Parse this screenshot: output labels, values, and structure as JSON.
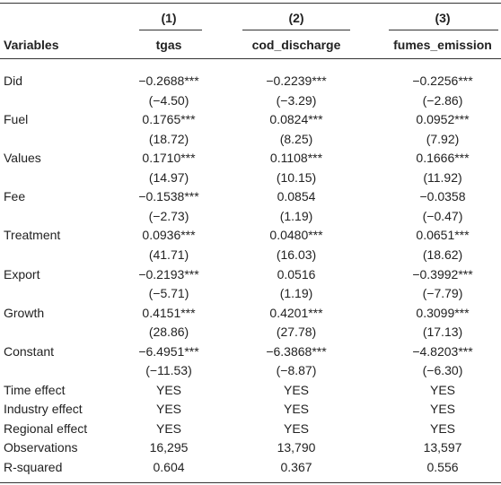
{
  "table": {
    "header": {
      "numbers": [
        "(1)",
        "(2)",
        "(3)"
      ],
      "columns": [
        "Variables",
        "tgas",
        "cod_discharge",
        "fumes_emission"
      ]
    },
    "coef_rows": [
      {
        "label": "Did",
        "coef": [
          "−0.2688***",
          "−0.2239***",
          "−0.2256***"
        ],
        "se": [
          "(−4.50)",
          "(−3.29)",
          "(−2.86)"
        ]
      },
      {
        "label": "Fuel",
        "coef": [
          "0.1765***",
          "0.0824***",
          "0.0952***"
        ],
        "se": [
          "(18.72)",
          "(8.25)",
          "(7.92)"
        ]
      },
      {
        "label": "Values",
        "coef": [
          "0.1710***",
          "0.1108***",
          "0.1666***"
        ],
        "se": [
          "(14.97)",
          "(10.15)",
          "(11.92)"
        ]
      },
      {
        "label": "Fee",
        "coef": [
          "−0.1538***",
          "0.0854",
          "−0.0358"
        ],
        "se": [
          "(−2.73)",
          "(1.19)",
          "(−0.47)"
        ]
      },
      {
        "label": "Treatment",
        "coef": [
          "0.0936***",
          "0.0480***",
          "0.0651***"
        ],
        "se": [
          "(41.71)",
          "(16.03)",
          "(18.62)"
        ]
      },
      {
        "label": "Export",
        "coef": [
          "−0.2193***",
          "0.0516",
          "−0.3992***"
        ],
        "se": [
          "(−5.71)",
          "(1.19)",
          "(−7.79)"
        ]
      },
      {
        "label": "Growth",
        "coef": [
          "0.4151***",
          "0.4201***",
          "0.3099***"
        ],
        "se": [
          "(28.86)",
          "(27.78)",
          "(17.13)"
        ]
      },
      {
        "label": "Constant",
        "coef": [
          "−6.4951***",
          "−6.3868***",
          "−4.8203***"
        ],
        "se": [
          "(−11.53)",
          "(−8.87)",
          "(−6.30)"
        ]
      }
    ],
    "stat_rows": [
      {
        "label": "Time effect",
        "values": [
          "YES",
          "YES",
          "YES"
        ]
      },
      {
        "label": "Industry effect",
        "values": [
          "YES",
          "YES",
          "YES"
        ]
      },
      {
        "label": "Regional effect",
        "values": [
          "YES",
          "YES",
          "YES"
        ]
      },
      {
        "label": "Observations",
        "values": [
          "16,295",
          "13,790",
          "13,597"
        ]
      },
      {
        "label": "R-squared",
        "values": [
          "0.604",
          "0.367",
          "0.556"
        ]
      }
    ]
  }
}
